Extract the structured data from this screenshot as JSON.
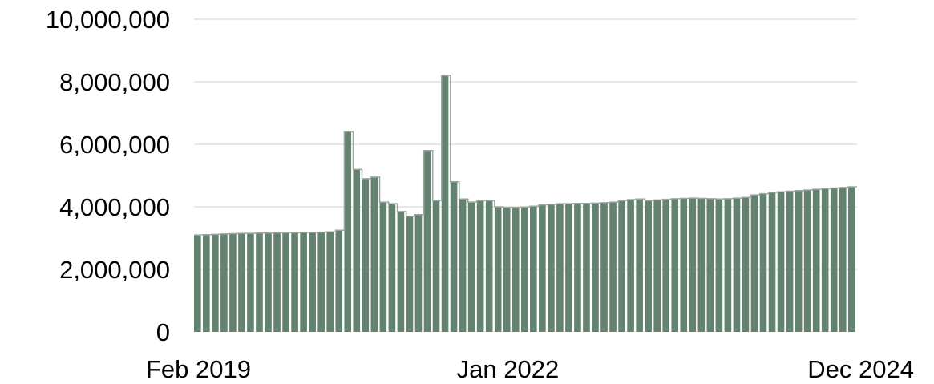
{
  "chart_data": {
    "type": "bar",
    "title": "",
    "xlabel": "",
    "ylabel": "",
    "ylim": [
      0,
      10000000
    ],
    "grid": true,
    "legend": "none",
    "bar_color": "#63826f",
    "bar_edge_color": "#9aa69e",
    "y_ticks": [
      0,
      2000000,
      4000000,
      6000000,
      8000000,
      10000000
    ],
    "y_tick_labels": [
      "0",
      "2,000,000",
      "4,000,000",
      "6,000,000",
      "8,000,000",
      "10,000,000"
    ],
    "x_tick_labels": [
      {
        "index": 0,
        "label": "Feb 2019"
      },
      {
        "index": 35,
        "label": "Jan 2022"
      },
      {
        "index": 70,
        "label": "Dec 2024"
      }
    ],
    "series": [
      {
        "values": [
          3100000,
          3110000,
          3120000,
          3130000,
          3140000,
          3150000,
          3150000,
          3160000,
          3160000,
          3170000,
          3170000,
          3170000,
          3180000,
          3180000,
          3190000,
          3200000,
          3250000,
          6400000,
          5200000,
          4900000,
          4950000,
          4150000,
          4100000,
          3850000,
          3700000,
          3750000,
          5800000,
          4200000,
          8200000,
          4800000,
          4250000,
          4150000,
          4200000,
          4200000,
          4000000,
          3980000,
          3980000,
          3990000,
          4020000,
          4060000,
          4080000,
          4100000,
          4100000,
          4110000,
          4110000,
          4120000,
          4130000,
          4150000,
          4200000,
          4230000,
          4250000,
          4200000,
          4220000,
          4240000,
          4260000,
          4270000,
          4280000,
          4270000,
          4260000,
          4250000,
          4260000,
          4280000,
          4300000,
          4380000,
          4420000,
          4460000,
          4480000,
          4500000,
          4520000,
          4540000,
          4560000,
          4580000,
          4600000,
          4620000,
          4640000
        ]
      }
    ]
  }
}
